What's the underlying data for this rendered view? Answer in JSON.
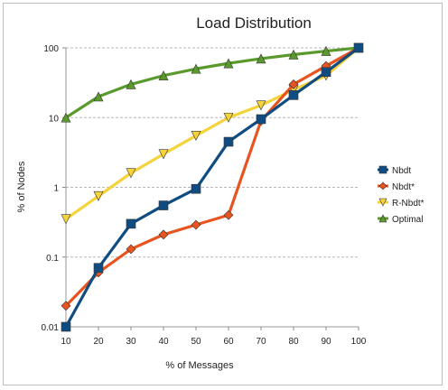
{
  "chart_data": {
    "type": "line",
    "title": "Load Distribution",
    "xlabel": "% of Messages",
    "ylabel": "% of Nodes",
    "x": [
      10,
      20,
      30,
      40,
      50,
      60,
      70,
      80,
      90,
      100
    ],
    "x_ticks": [
      "10",
      "20",
      "30",
      "40",
      "50",
      "60",
      "70",
      "80",
      "90",
      "100"
    ],
    "y_scale": "log",
    "ylim": [
      0.01,
      100
    ],
    "y_ticks": [
      "0.01",
      "0.1",
      "1",
      "10",
      "100"
    ],
    "grid": "horizontal dashed",
    "legend_position": "right",
    "series": [
      {
        "name": "Nbdt",
        "color": "#0f4c81",
        "marker": "square",
        "values": [
          0.01,
          0.07,
          0.3,
          0.55,
          0.95,
          4.5,
          9.5,
          21,
          45,
          100
        ]
      },
      {
        "name": "Nbdt*",
        "color": "#e8541f",
        "marker": "diamond",
        "values": [
          0.02,
          0.06,
          0.13,
          0.21,
          0.29,
          0.4,
          9,
          30,
          55,
          100
        ]
      },
      {
        "name": "R-Nbdt*",
        "color": "#f5d33b",
        "marker": "triangle-down",
        "values": [
          0.35,
          0.75,
          1.6,
          3,
          5.5,
          10,
          15,
          25,
          40,
          100
        ]
      },
      {
        "name": "Optimal",
        "color": "#5a9a2c",
        "marker": "triangle-up",
        "values": [
          10,
          20,
          30,
          40,
          50,
          60,
          70,
          80,
          90,
          100
        ]
      }
    ]
  }
}
